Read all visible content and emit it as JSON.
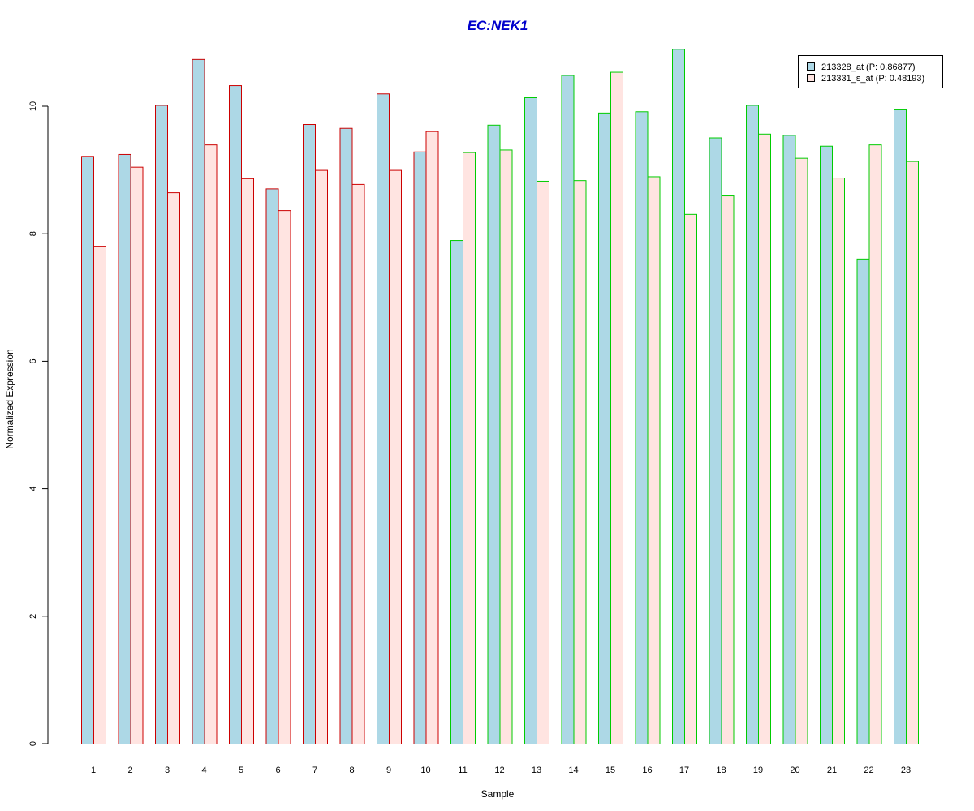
{
  "chart_data": {
    "type": "bar",
    "title": "EC:NEK1",
    "xlabel": "Sample",
    "ylabel": "Normalized Expression",
    "ylim": [
      0,
      11
    ],
    "yticks": [
      "0",
      "2",
      "4",
      "6",
      "8",
      "10"
    ],
    "categories": [
      "1",
      "2",
      "3",
      "4",
      "5",
      "6",
      "7",
      "8",
      "9",
      "10",
      "11",
      "12",
      "13",
      "14",
      "15",
      "16",
      "17",
      "18",
      "19",
      "20",
      "21",
      "22",
      "23"
    ],
    "group_border_colors": [
      "#cc0000",
      "#cc0000",
      "#cc0000",
      "#cc0000",
      "#cc0000",
      "#cc0000",
      "#cc0000",
      "#cc0000",
      "#cc0000",
      "#cc0000",
      "#00cc00",
      "#00cc00",
      "#00cc00",
      "#00cc00",
      "#00cc00",
      "#00cc00",
      "#00cc00",
      "#00cc00",
      "#00cc00",
      "#00cc00",
      "#00cc00",
      "#00cc00",
      "#00cc00"
    ],
    "series": [
      {
        "name": "213328_at (P: 0.86877)",
        "fill": "#add8e6",
        "values": [
          9.22,
          9.25,
          10.02,
          10.74,
          10.33,
          8.71,
          9.72,
          9.66,
          10.2,
          9.29,
          7.9,
          9.71,
          10.14,
          10.49,
          9.9,
          9.92,
          10.9,
          9.51,
          10.02,
          9.55,
          9.38,
          7.61,
          9.95
        ]
      },
      {
        "name": "213331_s_at (P: 0.48193)",
        "fill": "#ffe4e1",
        "values": [
          7.81,
          9.05,
          8.65,
          9.4,
          8.87,
          8.37,
          9.0,
          8.78,
          9.0,
          9.61,
          9.28,
          9.32,
          8.83,
          8.84,
          10.54,
          8.9,
          8.31,
          8.6,
          9.57,
          9.19,
          8.88,
          9.4,
          9.14
        ]
      }
    ],
    "legend_position": "top-right",
    "grid": false
  }
}
